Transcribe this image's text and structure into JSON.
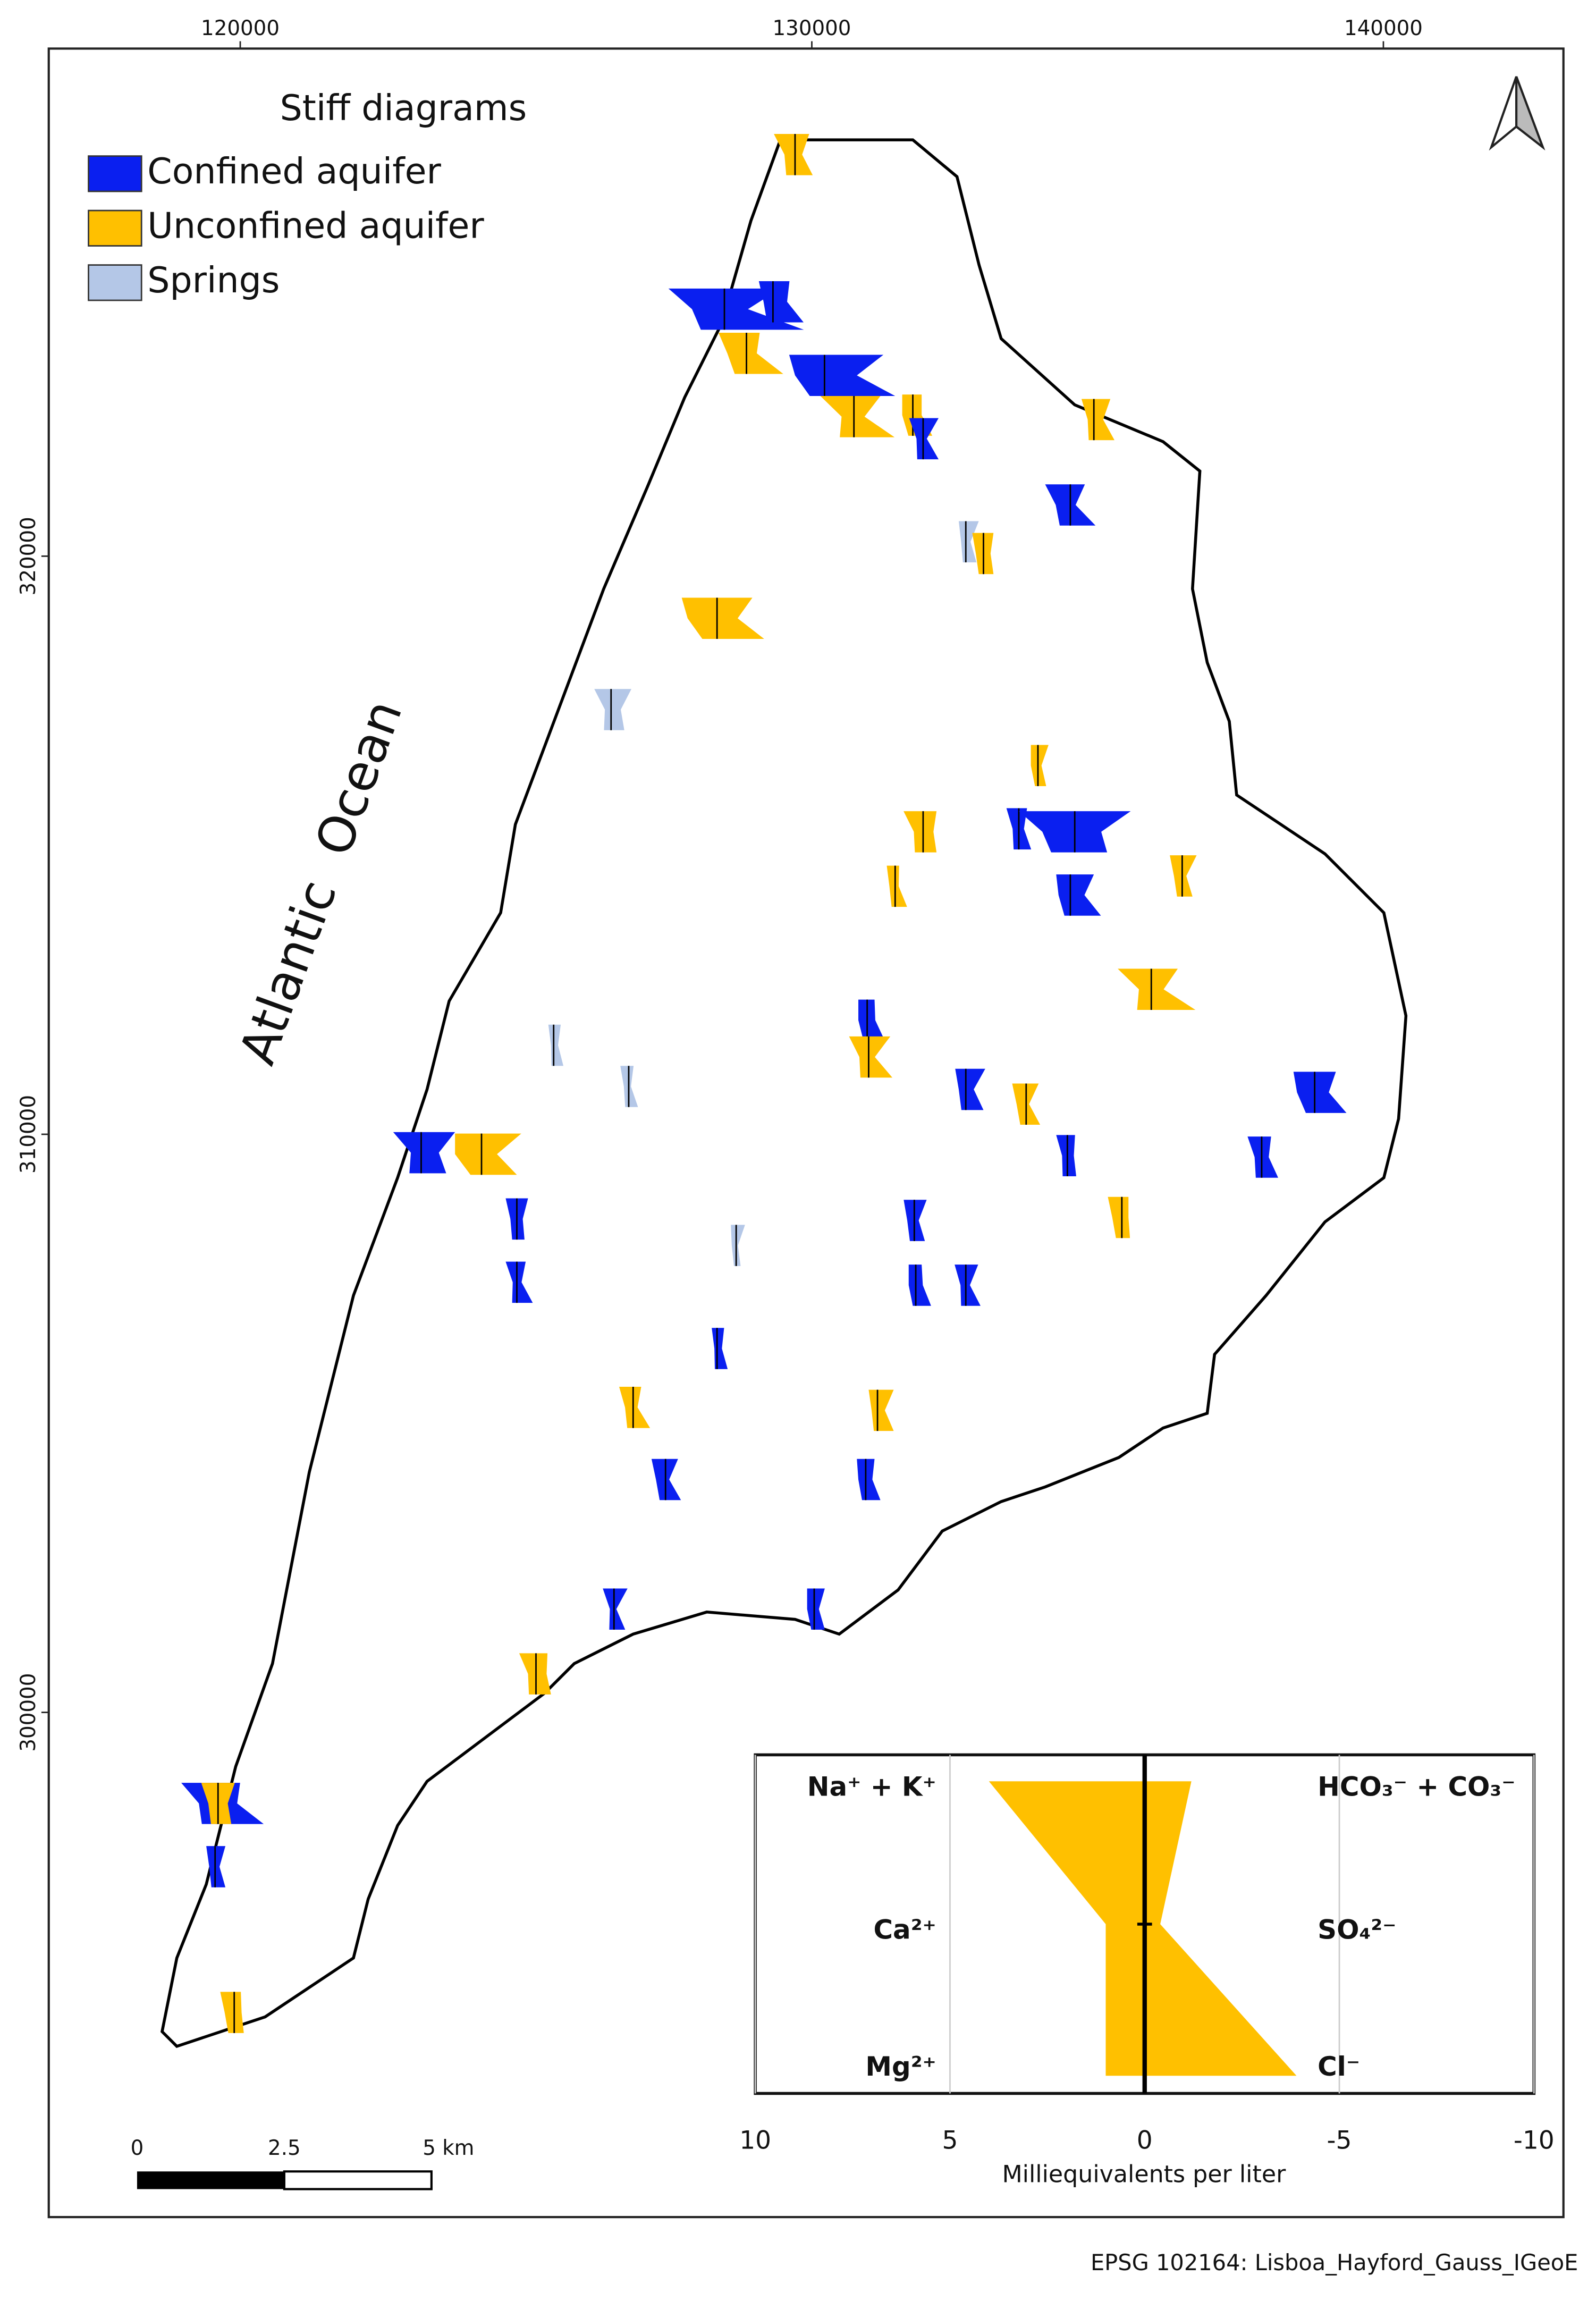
{
  "map": {
    "xticks": [
      120000,
      130000,
      140000
    ],
    "yticks": [
      320000,
      310000,
      300000
    ],
    "xlim": [
      116650,
      143150
    ],
    "ylim": [
      291270,
      328780
    ],
    "ocean_label": "Atlantic  Ocean",
    "scale_bar": [
      "0",
      "2.5",
      "5 km"
    ],
    "footer": "EPSG 102164: Lisboa_Hayford_Gauss_IGeoE"
  },
  "legend": {
    "title": "Stiff diagrams",
    "entries": [
      {
        "name": "Confined aquifer",
        "color": "#0a1ff0"
      },
      {
        "name": "Unconfined aquifer",
        "color": "#ffc000"
      },
      {
        "name": "Springs",
        "color": "#b4c7e7"
      }
    ]
  },
  "chart_data": {
    "type": "stiff",
    "color": "#ffc000",
    "cations": [
      "Na⁺ + K⁺",
      "Ca²⁺",
      "Mg²⁺"
    ],
    "anions": [
      "HCO₃⁻ + CO₃⁻",
      "SO₄²⁻",
      "Cl⁻"
    ],
    "cation_values": [
      4,
      1,
      1
    ],
    "anion_values": [
      -1.2,
      -0.4,
      -3.9
    ],
    "xlim": [
      10,
      -10
    ],
    "xticks": [
      10,
      5,
      0,
      -5,
      -10
    ],
    "xlabel": "Milliequivalents per liter"
  }
}
